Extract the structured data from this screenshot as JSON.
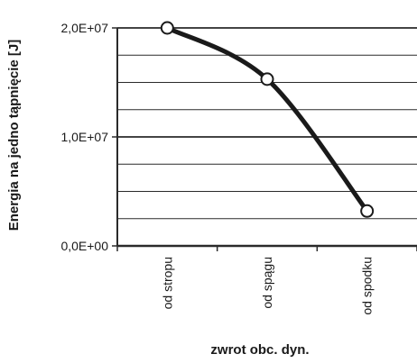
{
  "chart_data": {
    "type": "line",
    "title": "",
    "xlabel": "zwrot obc. dyn.",
    "ylabel": "Energia na jedno tąpnięcie [J]",
    "categories": [
      "od stropu",
      "od spągu",
      "od spodku"
    ],
    "series": [
      {
        "values": [
          20000000,
          15300000,
          3200000
        ]
      }
    ],
    "ylim": [
      0,
      20000000
    ],
    "yticks": [
      {
        "value": 0,
        "label": "0,0E+00"
      },
      {
        "value": 10000000,
        "label": "1,0E+07"
      },
      {
        "value": 20000000,
        "label": "2,0E+07"
      }
    ],
    "minor_grid_step": 2500000,
    "grid": true,
    "legend": "none",
    "colors": {
      "line": "#1a1a1a",
      "marker_fill": "#ffffff",
      "grid": "#2a2a2a",
      "background": "#ffffff"
    }
  }
}
